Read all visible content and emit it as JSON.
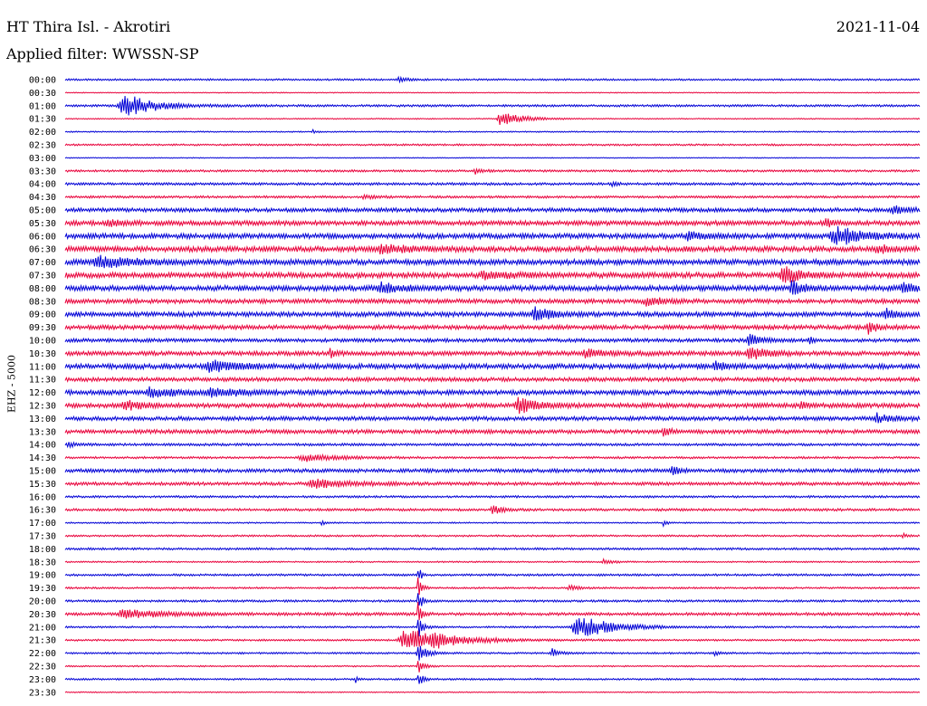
{
  "header": {
    "station": "HT Thira Isl. - Akrotiri",
    "filter": "Applied filter: WWSSN-SP",
    "date": "2021-11-04"
  },
  "chart_data": {
    "type": "helicorder",
    "channel_label": "EHZ - 5000",
    "colors": {
      "even_hour": "#0000d6",
      "half_hour": "#e8003a"
    },
    "rows": [
      {
        "label": "00:00",
        "noise": 1.0,
        "events": [
          {
            "t": 0.39,
            "a": 3,
            "d": 0.01
          }
        ]
      },
      {
        "label": "00:30",
        "noise": 0.5,
        "events": []
      },
      {
        "label": "01:00",
        "noise": 1.2,
        "events": [
          {
            "t": 0.069,
            "a": 13,
            "d": 0.035
          }
        ]
      },
      {
        "label": "01:30",
        "noise": 0.6,
        "events": [
          {
            "t": 0.51,
            "a": 8,
            "d": 0.025
          }
        ]
      },
      {
        "label": "02:00",
        "noise": 0.7,
        "events": [
          {
            "t": 0.29,
            "a": 2,
            "d": 0.004
          }
        ]
      },
      {
        "label": "02:30",
        "noise": 1.0,
        "events": []
      },
      {
        "label": "03:00",
        "noise": 0.5,
        "events": []
      },
      {
        "label": "03:30",
        "noise": 1.2,
        "events": [
          {
            "t": 0.48,
            "a": 3,
            "d": 0.01
          }
        ]
      },
      {
        "label": "04:00",
        "noise": 1.4,
        "events": [
          {
            "t": 0.64,
            "a": 3,
            "d": 0.005
          }
        ]
      },
      {
        "label": "04:30",
        "noise": 1.3,
        "events": [
          {
            "t": 0.35,
            "a": 2,
            "d": 0.015
          }
        ]
      },
      {
        "label": "05:00",
        "noise": 2.2,
        "events": [
          {
            "t": 0.97,
            "a": 4,
            "d": 0.02
          }
        ]
      },
      {
        "label": "05:30",
        "noise": 2.6,
        "events": [
          {
            "t": 0.05,
            "a": 4,
            "d": 0.015
          },
          {
            "t": 0.89,
            "a": 6,
            "d": 0.006
          }
        ]
      },
      {
        "label": "06:00",
        "noise": 2.8,
        "events": [
          {
            "t": 0.9,
            "a": 11,
            "d": 0.03
          },
          {
            "t": 0.73,
            "a": 4,
            "d": 0.02
          }
        ]
      },
      {
        "label": "06:30",
        "noise": 3.0,
        "events": [
          {
            "t": 0.37,
            "a": 5,
            "d": 0.03
          },
          {
            "t": 0.95,
            "a": 4,
            "d": 0.02
          }
        ]
      },
      {
        "label": "07:00",
        "noise": 3.0,
        "events": [
          {
            "t": 0.04,
            "a": 6,
            "d": 0.04
          }
        ]
      },
      {
        "label": "07:30",
        "noise": 3.0,
        "events": [
          {
            "t": 0.84,
            "a": 9,
            "d": 0.02
          },
          {
            "t": 0.49,
            "a": 4,
            "d": 0.03
          }
        ]
      },
      {
        "label": "08:00",
        "noise": 3.0,
        "events": [
          {
            "t": 0.85,
            "a": 10,
            "d": 0.01
          },
          {
            "t": 0.37,
            "a": 5,
            "d": 0.03
          },
          {
            "t": 0.98,
            "a": 7,
            "d": 0.01
          }
        ]
      },
      {
        "label": "08:30",
        "noise": 2.4,
        "events": [
          {
            "t": 0.68,
            "a": 4,
            "d": 0.02
          }
        ]
      },
      {
        "label": "09:00",
        "noise": 2.6,
        "events": [
          {
            "t": 0.55,
            "a": 8,
            "d": 0.02
          },
          {
            "t": 0.96,
            "a": 7,
            "d": 0.01
          }
        ]
      },
      {
        "label": "09:30",
        "noise": 2.4,
        "events": [
          {
            "t": 0.94,
            "a": 6,
            "d": 0.01
          }
        ]
      },
      {
        "label": "10:00",
        "noise": 2.0,
        "events": [
          {
            "t": 0.8,
            "a": 7,
            "d": 0.015
          },
          {
            "t": 0.87,
            "a": 4,
            "d": 0.005
          }
        ]
      },
      {
        "label": "10:30",
        "noise": 2.4,
        "events": [
          {
            "t": 0.8,
            "a": 8,
            "d": 0.02
          },
          {
            "t": 0.31,
            "a": 6,
            "d": 0.006
          },
          {
            "t": 0.61,
            "a": 4,
            "d": 0.03
          }
        ]
      },
      {
        "label": "11:00",
        "noise": 2.8,
        "events": [
          {
            "t": 0.17,
            "a": 7,
            "d": 0.03
          },
          {
            "t": 0.76,
            "a": 5,
            "d": 0.01
          }
        ]
      },
      {
        "label": "11:30",
        "noise": 2.2,
        "events": []
      },
      {
        "label": "12:00",
        "noise": 2.6,
        "events": [
          {
            "t": 0.1,
            "a": 5,
            "d": 0.03
          },
          {
            "t": 0.17,
            "a": 5,
            "d": 0.03
          }
        ]
      },
      {
        "label": "12:30",
        "noise": 2.5,
        "events": [
          {
            "t": 0.53,
            "a": 10,
            "d": 0.02
          },
          {
            "t": 0.07,
            "a": 5,
            "d": 0.02
          },
          {
            "t": 0.86,
            "a": 5,
            "d": 0.006
          }
        ]
      },
      {
        "label": "13:00",
        "noise": 2.2,
        "events": [
          {
            "t": 0.95,
            "a": 5,
            "d": 0.02
          }
        ]
      },
      {
        "label": "13:30",
        "noise": 2.2,
        "events": [
          {
            "t": 0.7,
            "a": 4,
            "d": 0.01
          }
        ]
      },
      {
        "label": "14:00",
        "noise": 1.4,
        "events": [
          {
            "t": 0.003,
            "a": 4,
            "d": 0.008
          }
        ]
      },
      {
        "label": "14:30",
        "noise": 1.2,
        "events": [
          {
            "t": 0.28,
            "a": 4,
            "d": 0.04
          }
        ]
      },
      {
        "label": "15:00",
        "noise": 2.0,
        "events": [
          {
            "t": 0.71,
            "a": 6,
            "d": 0.008
          }
        ]
      },
      {
        "label": "15:30",
        "noise": 1.8,
        "events": [
          {
            "t": 0.29,
            "a": 5,
            "d": 0.04
          }
        ]
      },
      {
        "label": "16:00",
        "noise": 1.2,
        "events": []
      },
      {
        "label": "16:30",
        "noise": 1.4,
        "events": [
          {
            "t": 0.5,
            "a": 6,
            "d": 0.01
          }
        ]
      },
      {
        "label": "17:00",
        "noise": 0.8,
        "events": [
          {
            "t": 0.7,
            "a": 4,
            "d": 0.004
          },
          {
            "t": 0.3,
            "a": 3,
            "d": 0.004
          }
        ]
      },
      {
        "label": "17:30",
        "noise": 1.0,
        "events": [
          {
            "t": 0.98,
            "a": 3,
            "d": 0.005
          }
        ]
      },
      {
        "label": "18:00",
        "noise": 1.2,
        "events": []
      },
      {
        "label": "18:30",
        "noise": 0.8,
        "events": [
          {
            "t": 0.63,
            "a": 3,
            "d": 0.01
          }
        ]
      },
      {
        "label": "19:00",
        "noise": 1.2,
        "events": [
          {
            "t": 0.413,
            "a": 13,
            "d": 0.003
          }
        ]
      },
      {
        "label": "19:30",
        "noise": 1.0,
        "events": [
          {
            "t": 0.413,
            "a": 14,
            "d": 0.004
          },
          {
            "t": 0.59,
            "a": 3,
            "d": 0.01
          }
        ]
      },
      {
        "label": "20:00",
        "noise": 1.2,
        "events": [
          {
            "t": 0.413,
            "a": 14,
            "d": 0.004
          }
        ]
      },
      {
        "label": "20:30",
        "noise": 1.6,
        "events": [
          {
            "t": 0.07,
            "a": 5,
            "d": 0.05
          },
          {
            "t": 0.413,
            "a": 14,
            "d": 0.004
          }
        ]
      },
      {
        "label": "21:00",
        "noise": 1.0,
        "events": [
          {
            "t": 0.6,
            "a": 13,
            "d": 0.04
          },
          {
            "t": 0.413,
            "a": 14,
            "d": 0.005
          }
        ]
      },
      {
        "label": "21:30",
        "noise": 1.0,
        "events": [
          {
            "t": 0.4,
            "a": 14,
            "d": 0.05
          },
          {
            "t": 0.43,
            "a": 12,
            "d": 0.008
          }
        ]
      },
      {
        "label": "22:00",
        "noise": 1.0,
        "events": [
          {
            "t": 0.413,
            "a": 10,
            "d": 0.01
          },
          {
            "t": 0.57,
            "a": 5,
            "d": 0.01
          },
          {
            "t": 0.76,
            "a": 3,
            "d": 0.006
          }
        ]
      },
      {
        "label": "22:30",
        "noise": 0.8,
        "events": [
          {
            "t": 0.413,
            "a": 10,
            "d": 0.006
          }
        ]
      },
      {
        "label": "23:00",
        "noise": 1.0,
        "events": [
          {
            "t": 0.413,
            "a": 9,
            "d": 0.005
          },
          {
            "t": 0.34,
            "a": 5,
            "d": 0.002
          }
        ]
      },
      {
        "label": "23:30",
        "noise": 0.6,
        "events": []
      }
    ]
  }
}
